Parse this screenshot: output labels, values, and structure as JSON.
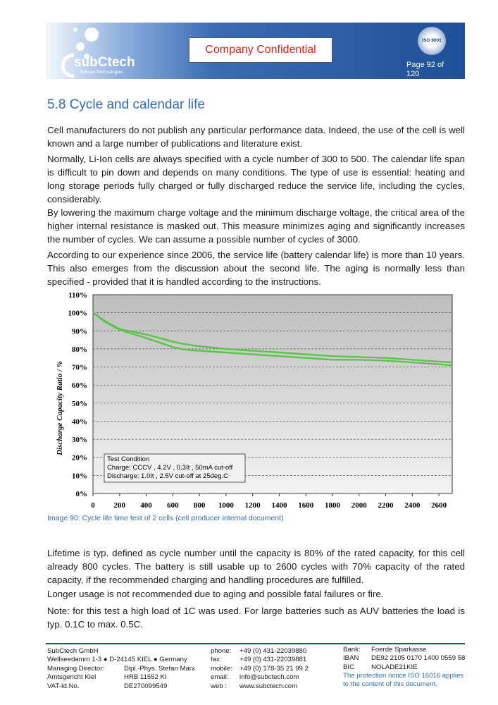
{
  "header": {
    "logo": "subCtech",
    "logo_sub": "Subsea Technologies",
    "confidential": "Company Confidential",
    "iso": "ISO 9001",
    "page": "Page 92 of 120"
  },
  "heading": "5.8 Cycle and calendar life",
  "paragraphs": [
    "Cell manufacturers do not publish any particular performance data. Indeed, the use of the cell is well known and a large number of publications and literature exist.",
    "Normally, Li-Ion cells are always specified with a cycle number of 300 to 500. The calendar life span is difficult to pin down and depends on many conditions. The type of use is essential: heating and long storage periods fully charged or fully discharged reduce the service life, including the cycles, considerably.",
    "By lowering the maximum charge voltage and the minimum discharge voltage, the critical area of the higher internal resistance is masked out. This measure minimizes aging and significantly increases the number of cycles. We can assume a possible number of cycles of 3000.",
    "According to our experience since 2006, the service life (battery calendar life) is more than 10 years. This also emerges from the discussion about the second life. The aging is normally less than specified - provided that it is handled according to the instructions."
  ],
  "chart_data": {
    "type": "line",
    "ylabel": "Discharge Capacity Ratio / %",
    "x": [
      0,
      100,
      200,
      400,
      600,
      700,
      800,
      1000,
      1200,
      1400,
      1600,
      1800,
      2000,
      2200,
      2400,
      2600,
      2700
    ],
    "series": [
      {
        "color": "#5cc44a",
        "values": [
          100,
          95,
          91,
          88,
          84,
          82.5,
          81.5,
          80,
          79,
          78,
          77,
          76,
          75.5,
          75,
          74,
          73,
          72.5
        ]
      },
      {
        "color": "#5cc44a",
        "values": [
          100,
          94.5,
          90.5,
          86,
          81,
          79.5,
          79,
          78,
          77,
          76,
          75,
          74,
          74,
          73.5,
          72.5,
          71.5,
          71
        ]
      }
    ],
    "xlim": [
      0,
      2700
    ],
    "xticks": [
      0,
      200,
      400,
      600,
      800,
      1000,
      1200,
      1400,
      1600,
      1800,
      2000,
      2200,
      2400,
      2600
    ],
    "ylim": [
      0,
      110
    ],
    "yticks": [
      {
        "value": 0,
        "label": "0%"
      },
      {
        "value": 10,
        "label": "10%"
      },
      {
        "value": 20,
        "label": "20%"
      },
      {
        "value": 30,
        "label": "30%"
      },
      {
        "value": 40,
        "label": "40%"
      },
      {
        "value": 50,
        "label": "50%"
      },
      {
        "value": 60,
        "label": "60%"
      },
      {
        "value": 70,
        "label": "70%"
      },
      {
        "value": 80,
        "label": "80%"
      },
      {
        "value": 90,
        "label": "90%"
      },
      {
        "value": 100,
        "label": "100%"
      },
      {
        "value": 110,
        "label": "110%"
      }
    ],
    "grid": true,
    "annotations": [
      "Test Condition",
      "Charge: CCCV , 4.2V , 0.3It , 50mA cut-off",
      "Discharge: 1.0It , 2.5V cut-off at 25deg.C"
    ]
  },
  "caption": "Image 90: Cycle life time test of 2 cells  (cell producer internal document)",
  "paragraphs_after": [
    "Lifetime is typ. defined as cycle number until the capacity is 80% of the rated capacity, for this cell already 800 cycles. The battery is still usable up to 2600 cycles with 70% capacity of the rated capacity, if the recommended charging and handling procedures are fulfilled.",
    "Longer usage is not recommended due to aging and possible fatal failures or fire.",
    "Note: for this test a high load of 1C was used. For large batteries such as AUV batteries the load is typ. 0.1C to max. 0.5C."
  ],
  "footer": {
    "company": [
      [
        "SubCtech GmbH"
      ],
      [
        "Wellseedamm 1-3 ● D-24145 KIEL ● Germany"
      ],
      [
        "Managing Director:",
        "Dipl.-Phys. Stefan Marx"
      ],
      [
        "Amtsgericht Kiel",
        "HRB 11552 KI"
      ],
      [
        "VAT-Id.No.",
        "DE270099549"
      ]
    ],
    "contact": [
      [
        "phone:",
        "+49 (0) 431-22039880"
      ],
      [
        "fax:",
        "+49 (0) 431-22039881"
      ],
      [
        "mobile:",
        "+49 (0) 178-35 21 99 2"
      ],
      [
        "email:",
        "info@subctech.com"
      ],
      [
        "web :",
        "www.subctech.com"
      ]
    ],
    "bank": [
      [
        "Bank:",
        "Foerde Sparkasse"
      ],
      [
        "IBAN",
        "DE92 2105 0170 1400 0559 58"
      ],
      [
        "BIC",
        "NOLADE21KIE"
      ]
    ],
    "notice": "The protection notice ISO 16016 applies to the content of this document."
  }
}
